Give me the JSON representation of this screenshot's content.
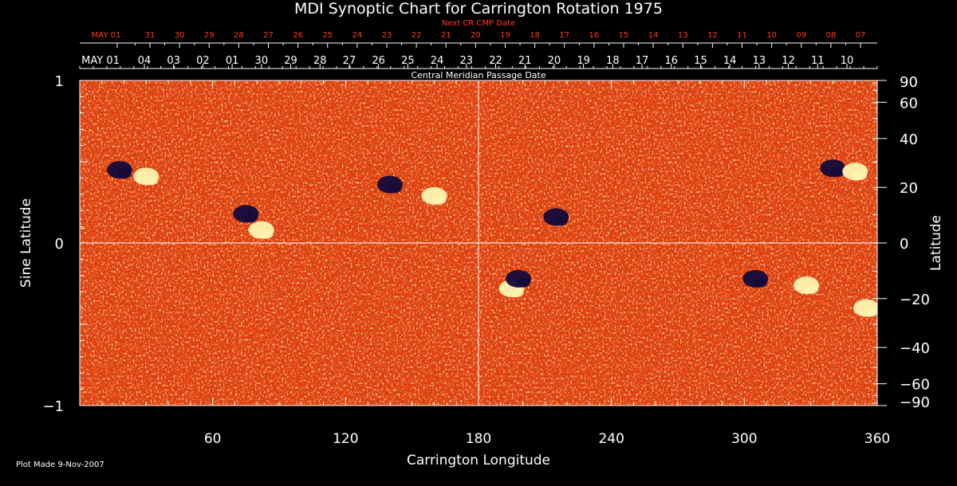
{
  "chart_title": "MDI Synoptic Chart for Carrington Rotation 1975",
  "next_cr_label": "Next CR CMP Date",
  "cmp_label": "Central Meridian Passage Date",
  "plot_made": "Plot Made  9-Nov-2007",
  "colors": {
    "background": "#000000",
    "axis": "#ffffff",
    "next_cr": "#ff3a1a",
    "field_base": "#e0400d",
    "positive": "#fff3b0",
    "negative": "#140a3a"
  },
  "chart_data": {
    "type": "heatmap",
    "xlabel": "Carrington Longitude",
    "ylabel_left": "Sine Latitude",
    "ylabel_right": "Latitude",
    "xlim": [
      0,
      360
    ],
    "ylim": [
      -1,
      1
    ],
    "x_ticks": [
      "60",
      "120",
      "180",
      "240",
      "300",
      "360"
    ],
    "y_ticks_left": [
      "1",
      "0",
      "−1"
    ],
    "y_ticks_right": [
      "90",
      "60",
      "40",
      "20",
      "0",
      "−20",
      "−40",
      "−60",
      "−90"
    ],
    "y_ticks_right_values": [
      90,
      60,
      40,
      20,
      0,
      -20,
      -40,
      -60,
      -90
    ],
    "next_cr_dates": [
      "MAY 01",
      "31",
      "30",
      "29",
      "28",
      "27",
      "26",
      "25",
      "24",
      "23",
      "22",
      "21",
      "20",
      "19",
      "18",
      "17",
      "16",
      "15",
      "14",
      "13",
      "12",
      "11",
      "10",
      "09",
      "08",
      "07"
    ],
    "cmp_dates": [
      "MAY 01",
      "04",
      "03",
      "02",
      "01",
      "30",
      "29",
      "28",
      "27",
      "26",
      "25",
      "24",
      "23",
      "22",
      "21",
      "20",
      "19",
      "18",
      "17",
      "16",
      "15",
      "14",
      "13",
      "12",
      "11",
      "10"
    ],
    "active_regions": [
      {
        "lon": 18,
        "sinlat": 0.45,
        "polarity": "negative"
      },
      {
        "lon": 30,
        "sinlat": 0.41,
        "polarity": "positive"
      },
      {
        "lon": 75,
        "sinlat": 0.18,
        "polarity": "negative"
      },
      {
        "lon": 82,
        "sinlat": 0.08,
        "polarity": "positive"
      },
      {
        "lon": 140,
        "sinlat": 0.36,
        "polarity": "negative"
      },
      {
        "lon": 160,
        "sinlat": 0.29,
        "polarity": "positive"
      },
      {
        "lon": 195,
        "sinlat": -0.28,
        "polarity": "positive"
      },
      {
        "lon": 198,
        "sinlat": -0.22,
        "polarity": "negative"
      },
      {
        "lon": 215,
        "sinlat": 0.16,
        "polarity": "negative"
      },
      {
        "lon": 305,
        "sinlat": -0.22,
        "polarity": "negative"
      },
      {
        "lon": 328,
        "sinlat": -0.26,
        "polarity": "positive"
      },
      {
        "lon": 340,
        "sinlat": 0.46,
        "polarity": "negative"
      },
      {
        "lon": 350,
        "sinlat": 0.44,
        "polarity": "positive"
      },
      {
        "lon": 355,
        "sinlat": -0.4,
        "polarity": "positive"
      }
    ]
  }
}
